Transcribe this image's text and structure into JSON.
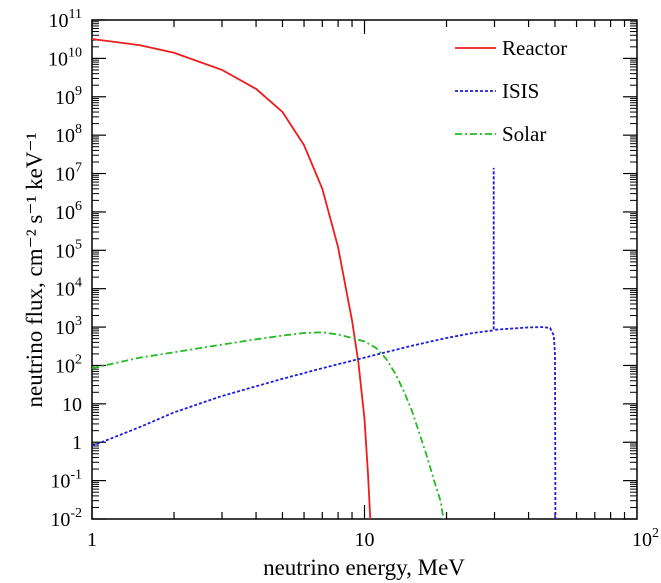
{
  "chart_data": {
    "type": "line",
    "xlabel": "neutrino energy, MeV",
    "ylabel": "neutrino flux, cm⁻² s⁻¹ keV⁻¹",
    "xscale": "log",
    "yscale": "log",
    "xlim": [
      1,
      100
    ],
    "ylim": [
      0.01,
      100000000000
    ],
    "grid": false,
    "legend_position": "top-right",
    "x_tick_labels": [
      {
        "value": 1,
        "base": "1",
        "exp": ""
      },
      {
        "value": 10,
        "base": "10",
        "exp": ""
      },
      {
        "value": 100,
        "base": "10",
        "exp": "2"
      }
    ],
    "y_tick_labels": [
      {
        "value": 0.01,
        "base": "10",
        "exp": "-2"
      },
      {
        "value": 0.1,
        "base": "10",
        "exp": "-1"
      },
      {
        "value": 1,
        "base": "1",
        "exp": ""
      },
      {
        "value": 10,
        "base": "10",
        "exp": ""
      },
      {
        "value": 100,
        "base": "10",
        "exp": "2"
      },
      {
        "value": 1000,
        "base": "10",
        "exp": "3"
      },
      {
        "value": 10000,
        "base": "10",
        "exp": "4"
      },
      {
        "value": 100000,
        "base": "10",
        "exp": "5"
      },
      {
        "value": 1000000,
        "base": "10",
        "exp": "6"
      },
      {
        "value": 10000000,
        "base": "10",
        "exp": "7"
      },
      {
        "value": 100000000,
        "base": "10",
        "exp": "8"
      },
      {
        "value": 1000000000,
        "base": "10",
        "exp": "9"
      },
      {
        "value": 10000000000,
        "base": "10",
        "exp": "10"
      },
      {
        "value": 100000000000,
        "base": "10",
        "exp": "11"
      }
    ],
    "series": [
      {
        "name": "Reactor",
        "color": "#ee1c1c",
        "dash": "solid",
        "points": [
          [
            1,
            32000000000.0
          ],
          [
            1.5,
            22000000000.0
          ],
          [
            2,
            14000000000.0
          ],
          [
            3,
            5000000000.0
          ],
          [
            4,
            1600000000.0
          ],
          [
            5,
            400000000.0
          ],
          [
            6,
            55000000.0
          ],
          [
            7,
            4000000.0
          ],
          [
            8,
            120000.0
          ],
          [
            9,
            1500
          ],
          [
            9.5,
            120
          ],
          [
            10,
            4
          ],
          [
            10.3,
            0.15
          ],
          [
            10.5,
            0.01
          ]
        ]
      },
      {
        "name": "ISIS",
        "color": "#1c1ce0",
        "dash": "dotted",
        "points": [
          [
            1,
            0.8
          ],
          [
            1.5,
            2.5
          ],
          [
            2,
            6
          ],
          [
            3,
            16
          ],
          [
            5,
            45
          ],
          [
            7,
            85
          ],
          [
            10,
            160
          ],
          [
            15,
            330
          ],
          [
            20,
            520
          ],
          [
            25,
            700
          ],
          [
            29.8,
            820
          ],
          [
            29.8,
            14000000
          ],
          [
            29.8,
            850
          ],
          [
            35,
            920
          ],
          [
            40,
            980
          ],
          [
            45,
            1000
          ],
          [
            48,
            950
          ],
          [
            49.5,
            600
          ],
          [
            50,
            200
          ],
          [
            50.2,
            0.01
          ]
        ]
      },
      {
        "name": "Solar",
        "color": "#22bb22",
        "dash": "dash-dot",
        "points": [
          [
            1,
            85
          ],
          [
            1.5,
            160
          ],
          [
            2,
            220
          ],
          [
            3,
            350
          ],
          [
            4,
            480
          ],
          [
            5,
            600
          ],
          [
            6,
            700
          ],
          [
            7,
            730
          ],
          [
            8,
            640
          ],
          [
            9,
            520
          ],
          [
            10,
            420
          ],
          [
            11,
            290
          ],
          [
            12,
            150
          ],
          [
            13,
            60
          ],
          [
            14,
            20
          ],
          [
            15,
            6
          ],
          [
            16,
            1.5
          ],
          [
            17,
            0.4
          ],
          [
            18,
            0.1
          ],
          [
            19,
            0.03
          ],
          [
            19.5,
            0.01
          ]
        ]
      }
    ]
  }
}
